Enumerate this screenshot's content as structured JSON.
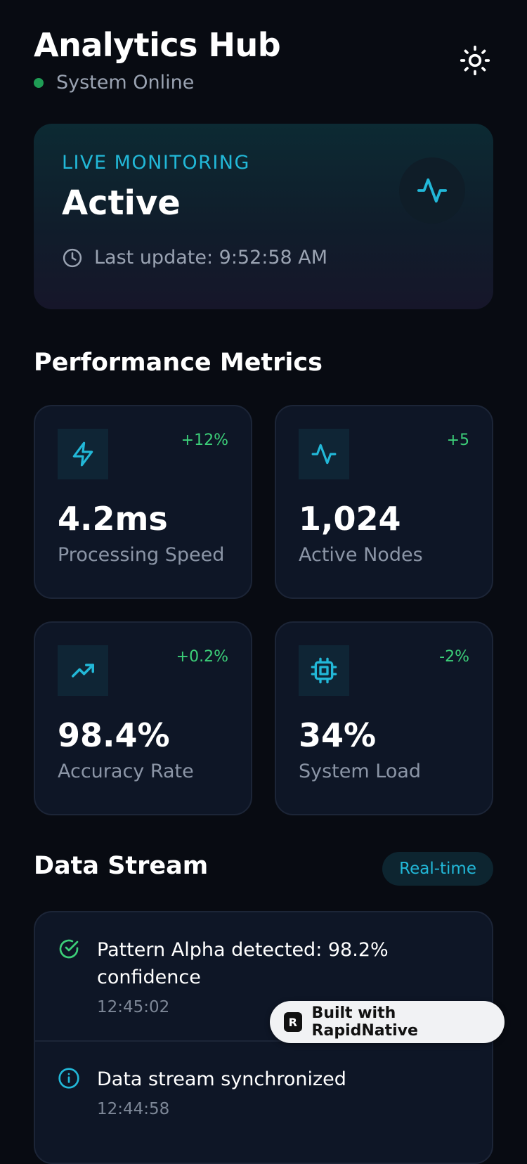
{
  "header": {
    "title": "Analytics Hub",
    "status_text": "System Online",
    "status_color": "#1f9d55",
    "theme_icon": "sun-icon"
  },
  "monitor": {
    "label": "LIVE MONITORING",
    "state": "Active",
    "last_update": "Last update: 9:52:58 AM",
    "icon": "activity-icon",
    "accent": "#22b8d8"
  },
  "metrics_section": {
    "title": "Performance Metrics",
    "cards": [
      {
        "icon": "zap-icon",
        "change": "+12%",
        "value": "4.2ms",
        "label": "Processing Speed"
      },
      {
        "icon": "activity-icon",
        "change": "+5",
        "value": "1,024",
        "label": "Active Nodes"
      },
      {
        "icon": "trending-up-icon",
        "change": "+0.2%",
        "value": "98.4%",
        "label": "Accuracy Rate"
      },
      {
        "icon": "cpu-icon",
        "change": "-2%",
        "value": "34%",
        "label": "System Load"
      }
    ]
  },
  "stream_section": {
    "title": "Data Stream",
    "badge": "Real-time",
    "items": [
      {
        "icon": "check-circle-icon",
        "message": "Pattern Alpha detected: 98.2% confidence",
        "time": "12:45:02"
      },
      {
        "icon": "info-icon",
        "message": "Data stream synchronized",
        "time": "12:44:58"
      }
    ]
  },
  "built_badge": {
    "logo_letter": "R",
    "text": "Built with RapidNative"
  }
}
